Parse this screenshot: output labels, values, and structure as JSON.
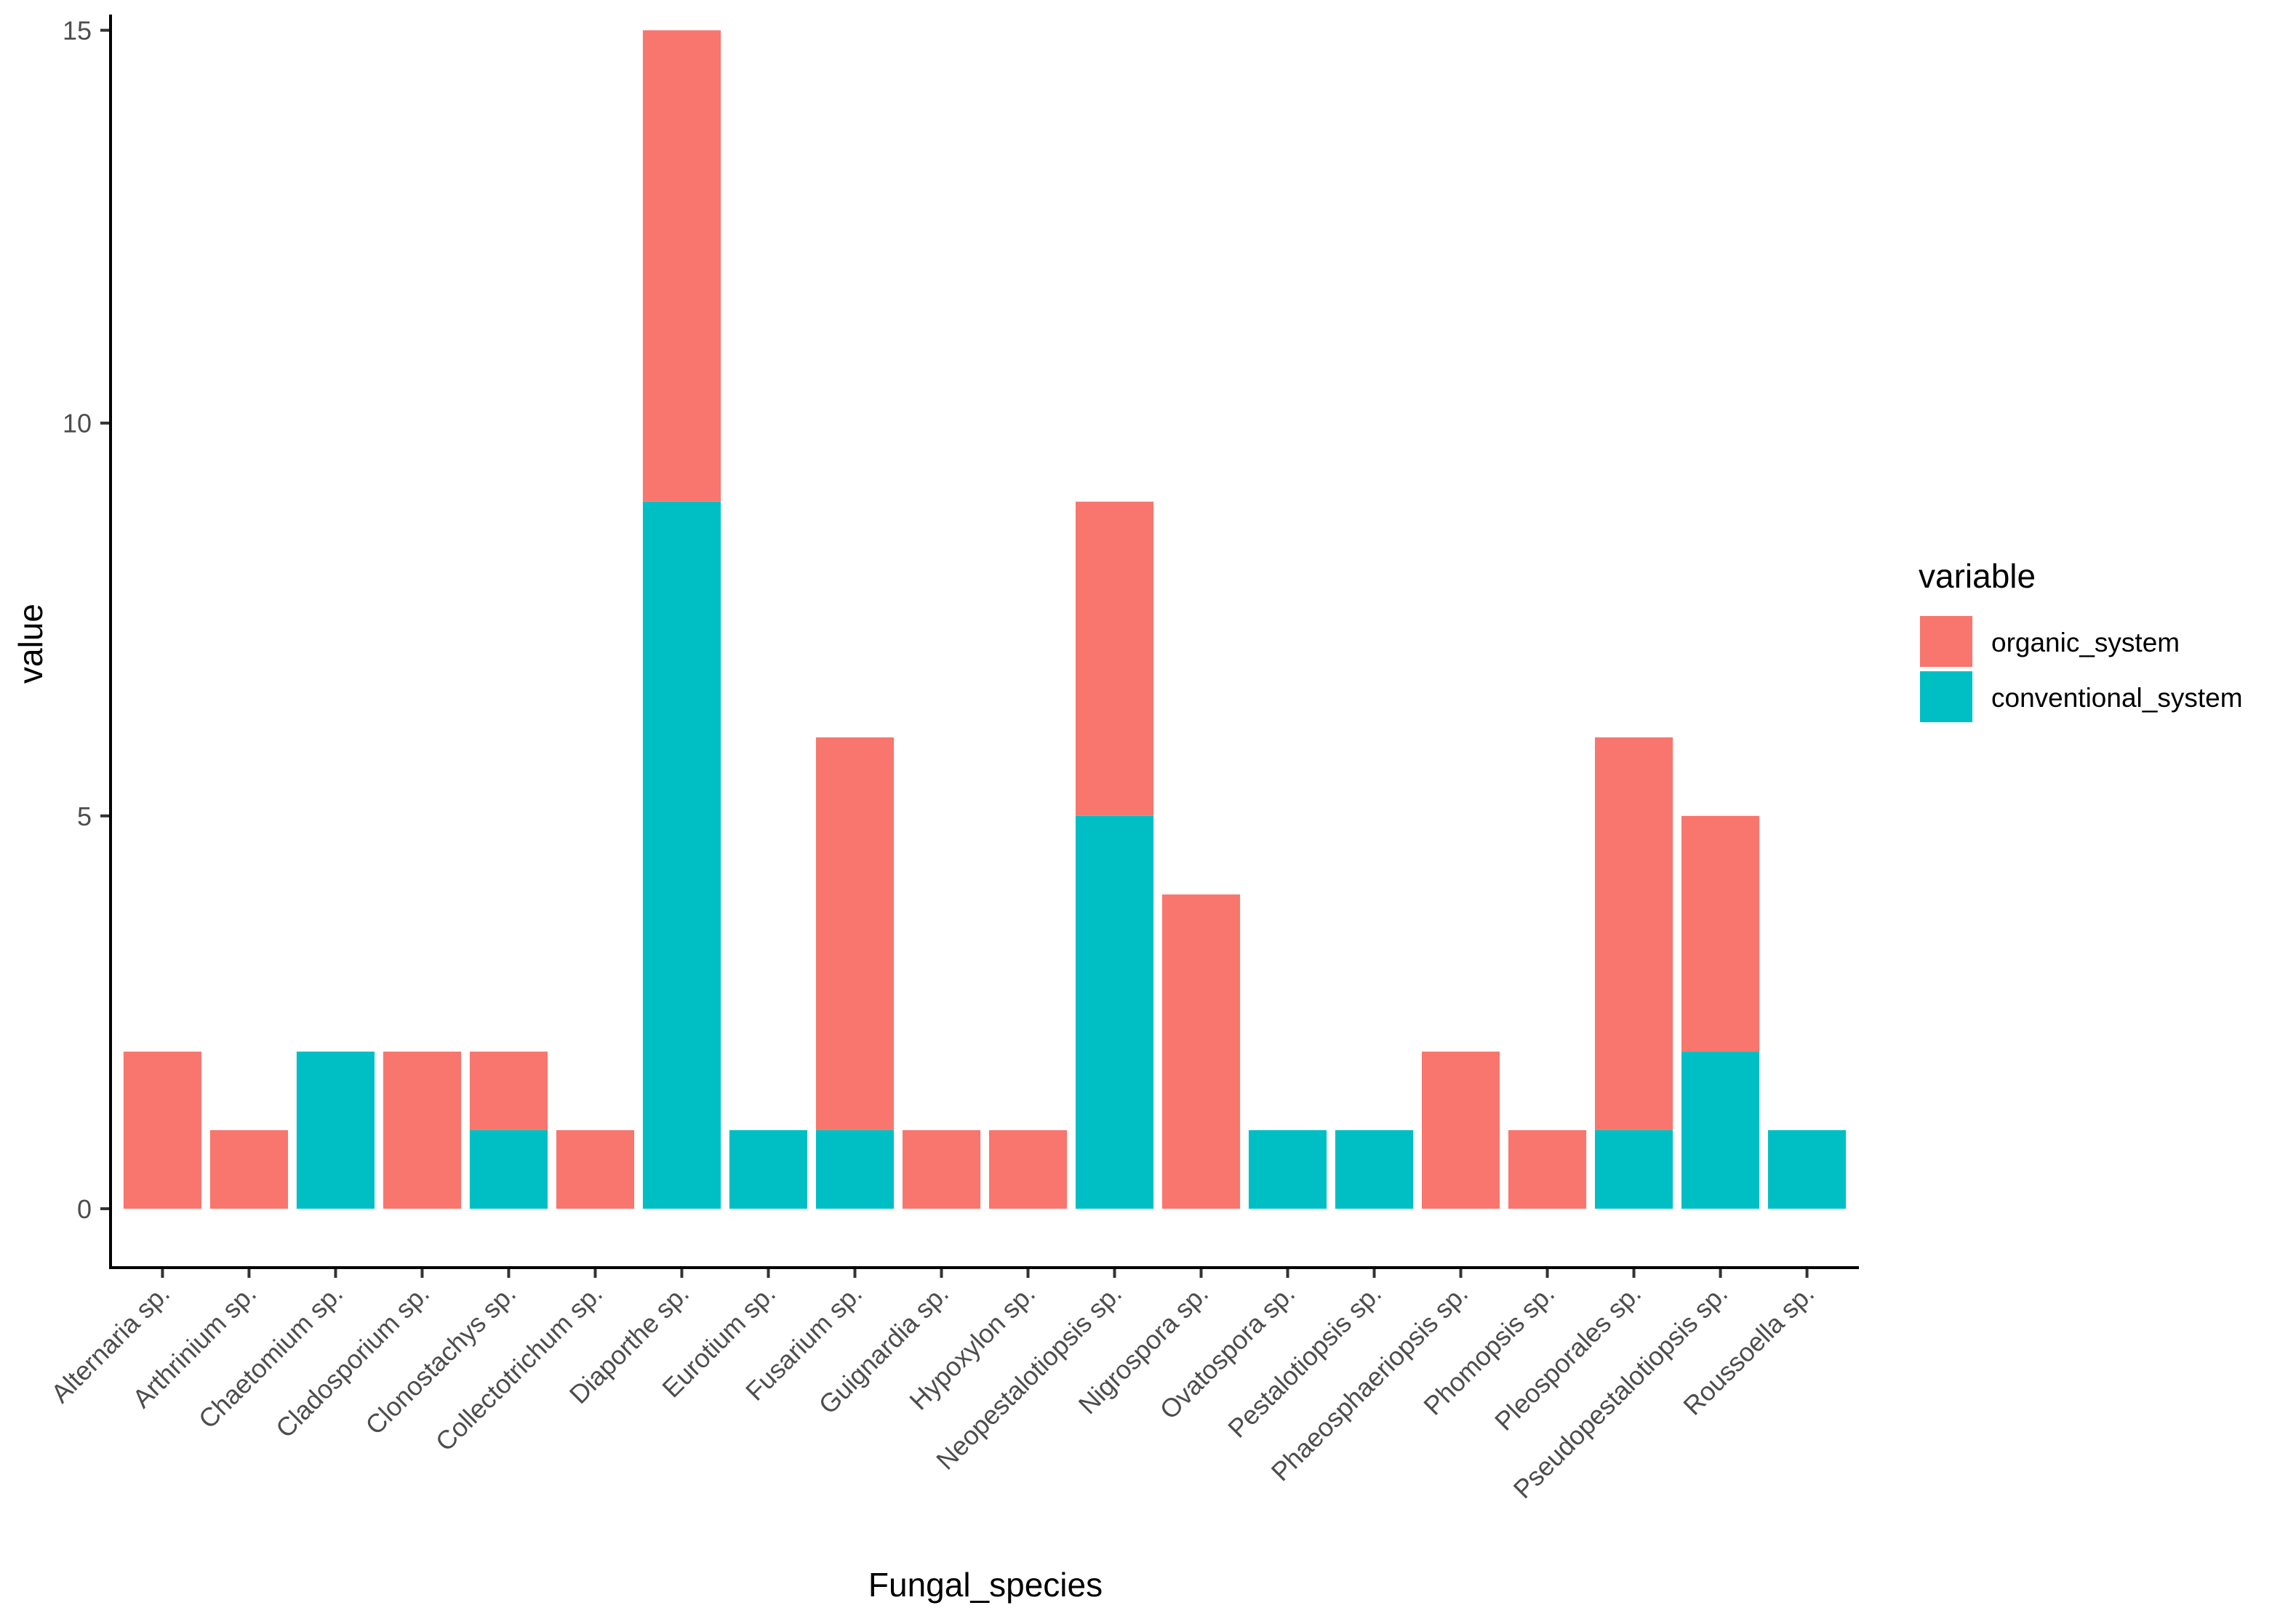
{
  "chart_data": {
    "type": "bar",
    "stacked": true,
    "title": "",
    "xlabel": "Fungal_species",
    "ylabel": "value",
    "ylim": [
      -0.75,
      15.2
    ],
    "yticks": [
      0,
      5,
      10,
      15
    ],
    "categories": [
      "Alternaria sp.",
      "Arthrinium sp.",
      "Chaetomium sp.",
      "Cladosporium sp.",
      "Clonostachys sp.",
      "Collectotrichum sp.",
      "Diaporthe sp.",
      "Eurotium sp.",
      "Fusarium sp.",
      "Guignardia sp.",
      "Hypoxylon sp.",
      "Neopestalotiopsis sp.",
      "Nigrospora sp.",
      "Ovatospora sp.",
      "Pestalotiopsis sp.",
      "Phaeosphaeriopsis sp.",
      "Phomopsis sp.",
      "Pleosporales sp.",
      "Pseudopestalotiopsis sp.",
      "Roussoella sp."
    ],
    "series": [
      {
        "name": "organic_system",
        "color": "#F8766D",
        "values": [
          2,
          1,
          0,
          2,
          1,
          1,
          6,
          0,
          5,
          1,
          1,
          4,
          4,
          0,
          0,
          2,
          1,
          5,
          3,
          0
        ]
      },
      {
        "name": "conventional_system",
        "color": "#00BFC4",
        "values": [
          0,
          0,
          2,
          0,
          1,
          0,
          9,
          1,
          1,
          0,
          0,
          5,
          0,
          1,
          1,
          0,
          0,
          1,
          2,
          1
        ]
      }
    ],
    "legend": {
      "title": "variable",
      "position": "right",
      "entries": [
        "organic_system",
        "conventional_system"
      ]
    }
  }
}
